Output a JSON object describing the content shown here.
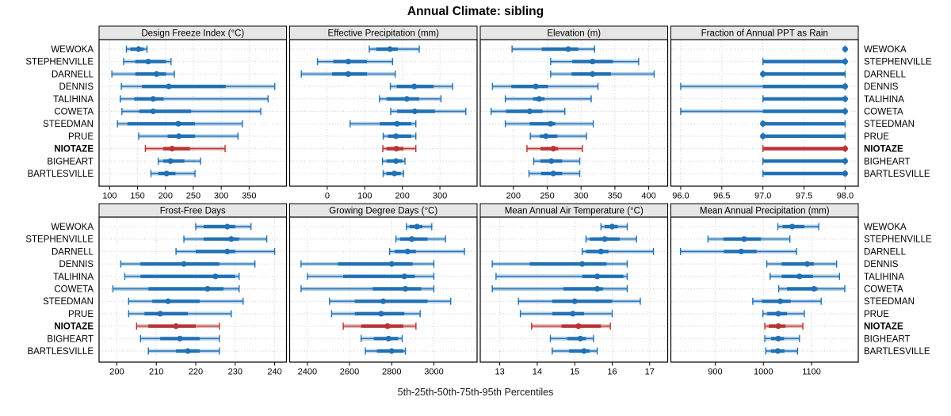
{
  "title": "Annual Climate: sibling",
  "caption": "5th-25th-50th-75th-95th Percentiles",
  "percentile_labels": [
    "5th",
    "25th",
    "50th",
    "75th",
    "95th"
  ],
  "stations": [
    "WEWOKA",
    "STEPHENVILLE",
    "DARNELL",
    "DENNIS",
    "TALIHINA",
    "COWETA",
    "STEEDMAN",
    "PRUE",
    "NIOTAZE",
    "BIGHEART",
    "BARTLESVILLE"
  ],
  "highlight_station": "NIOTAZE",
  "colors": {
    "series": "#2171B5",
    "highlight": "#B93434",
    "strip_bg": "#E6E6E6",
    "grid": "#C9CDD1",
    "border": "#000000",
    "text": "#000000"
  },
  "chart_data": [
    {
      "type": "percentile-dotplot",
      "label": "Design Freeze Index (°C)",
      "xlim": [
        81,
        417
      ],
      "xticks": [
        {
          "v": 100,
          "label": "100"
        },
        {
          "v": 150,
          "label": "150"
        },
        {
          "v": 200,
          "label": "200"
        },
        {
          "v": 250,
          "label": "250"
        },
        {
          "v": 300,
          "label": "300"
        },
        {
          "v": 350,
          "label": "350"
        }
      ],
      "series": [
        {
          "name": "WEWOKA",
          "percentiles": [
            130,
            137,
            152,
            161,
            167
          ]
        },
        {
          "name": "STEPHENVILLE",
          "percentiles": [
            125,
            146,
            169,
            201,
            210
          ]
        },
        {
          "name": "DARNELL",
          "percentiles": [
            104,
            146,
            184,
            201,
            216
          ]
        },
        {
          "name": "DENNIS",
          "percentiles": [
            121,
            158,
            206,
            308,
            396
          ]
        },
        {
          "name": "TALIHINA",
          "percentiles": [
            119,
            144,
            178,
            197,
            384
          ]
        },
        {
          "name": "COWETA",
          "percentiles": [
            122,
            153,
            178,
            246,
            371
          ]
        },
        {
          "name": "STEEDMAN",
          "percentiles": [
            114,
            132,
            223,
            253,
            338
          ]
        },
        {
          "name": "PRUE",
          "percentiles": [
            152,
            204,
            224,
            253,
            330
          ]
        },
        {
          "name": "NIOTAZE",
          "percentiles": [
            164,
            196,
            212,
            244,
            307
          ]
        },
        {
          "name": "BIGHEART",
          "percentiles": [
            187,
            196,
            209,
            234,
            263
          ]
        },
        {
          "name": "BARTLESVILLE",
          "percentiles": [
            174,
            187,
            202,
            218,
            253
          ]
        }
      ]
    },
    {
      "type": "percentile-dotplot",
      "label": "Effective Precipitation (mm)",
      "xlim": [
        -100,
        399
      ],
      "xticks": [
        {
          "v": 0,
          "label": "0"
        },
        {
          "v": 100,
          "label": "100"
        },
        {
          "v": 200,
          "label": "200"
        },
        {
          "v": 300,
          "label": "300"
        }
      ],
      "series": [
        {
          "name": "WEWOKA",
          "percentiles": [
            112,
            130,
            167,
            188,
            245
          ]
        },
        {
          "name": "STEPHENVILLE",
          "percentiles": [
            -26,
            16,
            56,
            106,
            174
          ]
        },
        {
          "name": "DARNELL",
          "percentiles": [
            -69,
            13,
            56,
            106,
            181
          ]
        },
        {
          "name": "DENNIS",
          "percentiles": [
            168,
            185,
            232,
            283,
            334
          ]
        },
        {
          "name": "TALIHINA",
          "percentiles": [
            139,
            158,
            212,
            245,
            303
          ]
        },
        {
          "name": "COWETA",
          "percentiles": [
            169,
            186,
            233,
            287,
            369
          ]
        },
        {
          "name": "STEEDMAN",
          "percentiles": [
            61,
            140,
            186,
            224,
            236
          ]
        },
        {
          "name": "PRUE",
          "percentiles": [
            149,
            162,
            183,
            224,
            236
          ]
        },
        {
          "name": "NIOTAZE",
          "percentiles": [
            148,
            158,
            184,
            203,
            236
          ]
        },
        {
          "name": "BIGHEART",
          "percentiles": [
            147,
            158,
            183,
            200,
            207
          ]
        },
        {
          "name": "BARTLESVILLE",
          "percentiles": [
            149,
            158,
            179,
            196,
            203
          ]
        }
      ]
    },
    {
      "type": "percentile-dotplot",
      "label": "Elevation (m)",
      "xlim": [
        151,
        428
      ],
      "xticks": [
        {
          "v": 200,
          "label": "200"
        },
        {
          "v": 250,
          "label": "250"
        },
        {
          "v": 300,
          "label": "300"
        },
        {
          "v": 350,
          "label": "350"
        },
        {
          "v": 400,
          "label": "400"
        }
      ],
      "series": [
        {
          "name": "WEWOKA",
          "percentiles": [
            198,
            242,
            281,
            296,
            320
          ]
        },
        {
          "name": "STEPHENVILLE",
          "percentiles": [
            255,
            287,
            317,
            347,
            385
          ]
        },
        {
          "name": "DARNELL",
          "percentiles": [
            255,
            286,
            317,
            344,
            408
          ]
        },
        {
          "name": "DENNIS",
          "percentiles": [
            169,
            197,
            233,
            251,
            325
          ]
        },
        {
          "name": "TALIHINA",
          "percentiles": [
            188,
            229,
            238,
            246,
            315
          ]
        },
        {
          "name": "COWETA",
          "percentiles": [
            167,
            189,
            224,
            243,
            276
          ]
        },
        {
          "name": "STEEDMAN",
          "percentiles": [
            188,
            224,
            255,
            262,
            318
          ]
        },
        {
          "name": "PRUE",
          "percentiles": [
            225,
            239,
            248,
            265,
            308
          ]
        },
        {
          "name": "NIOTAZE",
          "percentiles": [
            220,
            240,
            259,
            266,
            302
          ]
        },
        {
          "name": "BIGHEART",
          "percentiles": [
            230,
            240,
            256,
            272,
            298
          ]
        },
        {
          "name": "BARTLESVILLE",
          "percentiles": [
            223,
            241,
            259,
            272,
            298
          ]
        }
      ]
    },
    {
      "type": "percentile-dotplot",
      "label": "Fraction of Annual PPT as Rain",
      "xlim": [
        95.88,
        98.16
      ],
      "xticks": [
        {
          "v": 96,
          "label": "96.0"
        },
        {
          "v": 96.5,
          "label": "96.5"
        },
        {
          "v": 97,
          "label": "97.0"
        },
        {
          "v": 97.5,
          "label": "97.5"
        },
        {
          "v": 98,
          "label": "98.0"
        }
      ],
      "series": [
        {
          "name": "WEWOKA",
          "percentiles": [
            98,
            98,
            98,
            98,
            98
          ]
        },
        {
          "name": "STEPHENVILLE",
          "percentiles": [
            97,
            97,
            98,
            98,
            98
          ]
        },
        {
          "name": "DARNELL",
          "percentiles": [
            97,
            97,
            97,
            98,
            98
          ]
        },
        {
          "name": "DENNIS",
          "percentiles": [
            96,
            97,
            98,
            98,
            98
          ]
        },
        {
          "name": "TALIHINA",
          "percentiles": [
            97,
            97,
            98,
            98,
            98
          ]
        },
        {
          "name": "COWETA",
          "percentiles": [
            96,
            97,
            98,
            98,
            98
          ]
        },
        {
          "name": "STEEDMAN",
          "percentiles": [
            97,
            97,
            97,
            98,
            98
          ]
        },
        {
          "name": "PRUE",
          "percentiles": [
            97,
            97,
            97,
            98,
            98
          ]
        },
        {
          "name": "NIOTAZE",
          "percentiles": [
            97,
            97,
            98,
            98,
            98
          ]
        },
        {
          "name": "BIGHEART",
          "percentiles": [
            97,
            97,
            98,
            98,
            98
          ]
        },
        {
          "name": "BARTLESVILLE",
          "percentiles": [
            97,
            97,
            98,
            98,
            98
          ]
        }
      ]
    },
    {
      "type": "percentile-dotplot",
      "label": "Frost-Free Days",
      "xlim": [
        195.5,
        243
      ],
      "xticks": [
        {
          "v": 200,
          "label": "200"
        },
        {
          "v": 210,
          "label": "210"
        },
        {
          "v": 220,
          "label": "220"
        },
        {
          "v": 230,
          "label": "230"
        },
        {
          "v": 240,
          "label": "240"
        }
      ],
      "series": [
        {
          "name": "WEWOKA",
          "percentiles": [
            220,
            222,
            228,
            230,
            234
          ]
        },
        {
          "name": "STEPHENVILLE",
          "percentiles": [
            217,
            222,
            229,
            231,
            238
          ]
        },
        {
          "name": "DARNELL",
          "percentiles": [
            215,
            220,
            228,
            230,
            240
          ]
        },
        {
          "name": "DENNIS",
          "percentiles": [
            201,
            206,
            217,
            226,
            235
          ]
        },
        {
          "name": "TALIHINA",
          "percentiles": [
            202,
            206,
            225,
            230,
            231
          ]
        },
        {
          "name": "COWETA",
          "percentiles": [
            199,
            208,
            223,
            227,
            231
          ]
        },
        {
          "name": "STEEDMAN",
          "percentiles": [
            203,
            209,
            213,
            221,
            232
          ]
        },
        {
          "name": "PRUE",
          "percentiles": [
            203,
            207,
            211,
            218,
            229
          ]
        },
        {
          "name": "NIOTAZE",
          "percentiles": [
            205,
            208,
            215,
            220,
            226
          ]
        },
        {
          "name": "BIGHEART",
          "percentiles": [
            206,
            211,
            216,
            221,
            226
          ]
        },
        {
          "name": "BARTLESVILLE",
          "percentiles": [
            208,
            215,
            218,
            221,
            226
          ]
        }
      ]
    },
    {
      "type": "percentile-dotplot",
      "label": "Growing Degree Days (°C)",
      "xlim": [
        2316,
        3205
      ],
      "xticks": [
        {
          "v": 2400,
          "label": "2400"
        },
        {
          "v": 2600,
          "label": "2600"
        },
        {
          "v": 2800,
          "label": "2800"
        },
        {
          "v": 3000,
          "label": "3000"
        }
      ],
      "series": [
        {
          "name": "WEWOKA",
          "percentiles": [
            2870,
            2885,
            2920,
            2945,
            2990
          ]
        },
        {
          "name": "STEPHENVILLE",
          "percentiles": [
            2820,
            2840,
            2895,
            2970,
            3055
          ]
        },
        {
          "name": "DARNELL",
          "percentiles": [
            2790,
            2815,
            2875,
            2915,
            3145
          ]
        },
        {
          "name": "DENNIS",
          "percentiles": [
            2370,
            2545,
            2800,
            2900,
            3000
          ]
        },
        {
          "name": "TALIHINA",
          "percentiles": [
            2400,
            2570,
            2860,
            2910,
            3000
          ]
        },
        {
          "name": "COWETA",
          "percentiles": [
            2370,
            2710,
            2865,
            2940,
            3000
          ]
        },
        {
          "name": "STEEDMAN",
          "percentiles": [
            2505,
            2625,
            2760,
            2970,
            3080
          ]
        },
        {
          "name": "PRUE",
          "percentiles": [
            2515,
            2625,
            2750,
            2860,
            2935
          ]
        },
        {
          "name": "NIOTAZE",
          "percentiles": [
            2570,
            2655,
            2780,
            2855,
            2915
          ]
        },
        {
          "name": "BIGHEART",
          "percentiles": [
            2655,
            2715,
            2785,
            2830,
            2850
          ]
        },
        {
          "name": "BARTLESVILLE",
          "percentiles": [
            2675,
            2730,
            2800,
            2855,
            2865
          ]
        }
      ]
    },
    {
      "type": "percentile-dotplot",
      "label": "Mean Annual Air Temperature (°C)",
      "xlim": [
        12.48,
        17.48
      ],
      "xticks": [
        {
          "v": 13,
          "label": "13"
        },
        {
          "v": 14,
          "label": "14"
        },
        {
          "v": 15,
          "label": "15"
        },
        {
          "v": 16,
          "label": "16"
        },
        {
          "v": 17,
          "label": "17"
        }
      ],
      "series": [
        {
          "name": "WEWOKA",
          "percentiles": [
            15.7,
            15.8,
            16.0,
            16.15,
            16.4
          ]
        },
        {
          "name": "STEPHENVILLE",
          "percentiles": [
            15.3,
            15.4,
            15.8,
            16.2,
            16.65
          ]
        },
        {
          "name": "DARNELL",
          "percentiles": [
            15.2,
            15.3,
            15.7,
            15.9,
            17.1
          ]
        },
        {
          "name": "DENNIS",
          "percentiles": [
            12.8,
            13.8,
            15.2,
            15.85,
            16.4
          ]
        },
        {
          "name": "TALIHINA",
          "percentiles": [
            12.9,
            15.2,
            15.6,
            16.3,
            16.4
          ]
        },
        {
          "name": "COWETA",
          "percentiles": [
            12.8,
            14.7,
            15.6,
            15.75,
            16.4
          ]
        },
        {
          "name": "STEEDMAN",
          "percentiles": [
            13.5,
            14.4,
            15.0,
            16.0,
            16.75
          ]
        },
        {
          "name": "PRUE",
          "percentiles": [
            13.55,
            14.4,
            14.95,
            15.25,
            16.0
          ]
        },
        {
          "name": "NIOTAZE",
          "percentiles": [
            13.85,
            14.65,
            15.1,
            15.7,
            15.95
          ]
        },
        {
          "name": "BIGHEART",
          "percentiles": [
            14.35,
            14.8,
            15.15,
            15.3,
            15.5
          ]
        },
        {
          "name": "BARTLESVILLE",
          "percentiles": [
            14.4,
            14.85,
            15.25,
            15.4,
            15.6
          ]
        }
      ]
    },
    {
      "type": "percentile-dotplot",
      "label": "Mean Annual Precipitation (mm)",
      "xlim": [
        808,
        1197
      ],
      "xticks": [
        {
          "v": 900,
          "label": "900"
        },
        {
          "v": 1000,
          "label": "1000"
        },
        {
          "v": 1100,
          "label": "1100"
        }
      ],
      "series": [
        {
          "name": "WEWOKA",
          "percentiles": [
            1030,
            1040,
            1060,
            1085,
            1115
          ]
        },
        {
          "name": "STEPHENVILLE",
          "percentiles": [
            885,
            917,
            960,
            995,
            1055
          ]
        },
        {
          "name": "DARNELL",
          "percentiles": [
            828,
            918,
            954,
            986,
            1069
          ]
        },
        {
          "name": "DENNIS",
          "percentiles": [
            1007,
            1038,
            1091,
            1105,
            1152
          ]
        },
        {
          "name": "TALIHINA",
          "percentiles": [
            1014,
            1038,
            1075,
            1103,
            1158
          ]
        },
        {
          "name": "COWETA",
          "percentiles": [
            1032,
            1049,
            1105,
            1112,
            1169
          ]
        },
        {
          "name": "STEEDMAN",
          "percentiles": [
            978,
            997,
            1035,
            1057,
            1120
          ]
        },
        {
          "name": "PRUE",
          "percentiles": [
            999,
            1008,
            1031,
            1049,
            1085
          ]
        },
        {
          "name": "NIOTAZE",
          "percentiles": [
            1003,
            1011,
            1031,
            1046,
            1082
          ]
        },
        {
          "name": "BIGHEART",
          "percentiles": [
            1003,
            1016,
            1031,
            1043,
            1075
          ]
        },
        {
          "name": "BARTLESVILLE",
          "percentiles": [
            1005,
            1016,
            1030,
            1044,
            1071
          ]
        }
      ]
    }
  ]
}
